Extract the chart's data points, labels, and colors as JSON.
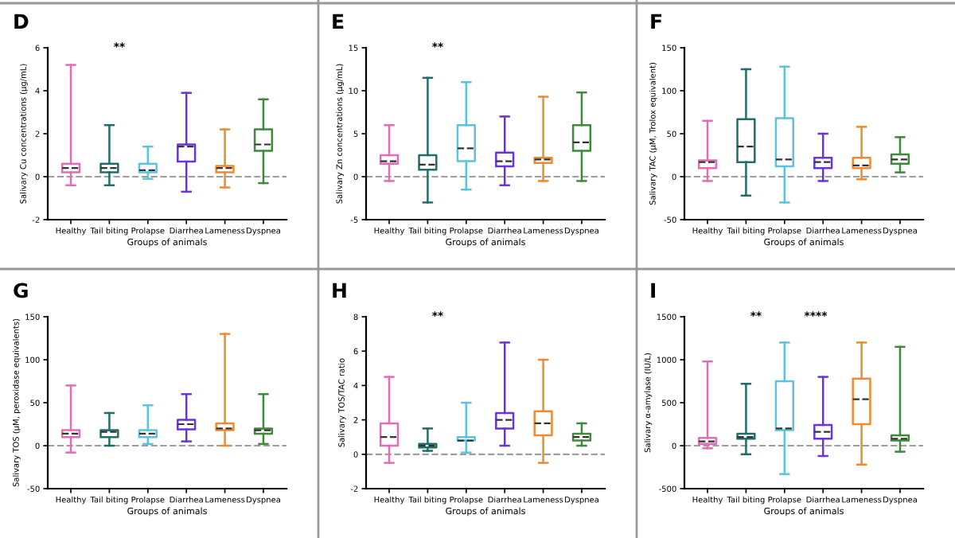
{
  "chart_data": [
    {
      "type": "box",
      "title": "D",
      "xlabel": "Groups of animals",
      "ylabel": "Salivary Cu concentrations (μg/mL)",
      "categories": [
        "Healthy",
        "Tail biting",
        "Prolapse",
        "Diarrhea",
        "Lameness",
        "Dyspnea"
      ],
      "colors": [
        "#e36cb8",
        "#1f6e6a",
        "#5cc3dc",
        "#6a35d4",
        "#f08a30",
        "#3f8a3a"
      ],
      "ylim": [
        -2,
        6
      ],
      "yticks": [
        -2,
        0,
        2,
        4,
        6
      ],
      "boxes": [
        {
          "low": -0.4,
          "q1": 0.2,
          "median": 0.4,
          "q3": 0.6,
          "high": 5.2
        },
        {
          "low": -0.4,
          "q1": 0.2,
          "median": 0.4,
          "q3": 0.6,
          "high": 2.4
        },
        {
          "low": -0.1,
          "q1": 0.2,
          "median": 0.3,
          "q3": 0.6,
          "high": 1.4
        },
        {
          "low": -0.7,
          "q1": 0.7,
          "median": 1.4,
          "q3": 1.5,
          "high": 3.9
        },
        {
          "low": -0.5,
          "q1": 0.2,
          "median": 0.4,
          "q3": 0.5,
          "high": 2.2
        },
        {
          "low": -0.3,
          "q1": 1.2,
          "median": 1.5,
          "q3": 2.2,
          "high": 3.6
        }
      ],
      "ref_lines": [
        {
          "axis": "y",
          "value": 0,
          "color": "#9e9e9e",
          "line_style": "dashed"
        }
      ],
      "annotations": [
        "**"
      ],
      "grid": false
    },
    {
      "type": "box",
      "title": "E",
      "xlabel": "Groups of animals",
      "ylabel": "Salivary Zn concentrations (μg/mL)",
      "categories": [
        "Healthy",
        "Tail biting",
        "Prolapse",
        "Diarrhea",
        "Lameness",
        "Dyspnea"
      ],
      "colors": [
        "#e36cb8",
        "#1f6e6a",
        "#5cc3dc",
        "#6a35d4",
        "#f08a30",
        "#3f8a3a"
      ],
      "ylim": [
        -5,
        15
      ],
      "yticks": [
        -5,
        0,
        5,
        10,
        15
      ],
      "boxes": [
        {
          "low": -0.5,
          "q1": 1.5,
          "median": 1.8,
          "q3": 2.5,
          "high": 6.0
        },
        {
          "low": -3.0,
          "q1": 0.8,
          "median": 1.4,
          "q3": 2.5,
          "high": 11.5
        },
        {
          "low": -1.5,
          "q1": 1.8,
          "median": 3.3,
          "q3": 6.0,
          "high": 11.0
        },
        {
          "low": -1.0,
          "q1": 1.2,
          "median": 1.8,
          "q3": 2.8,
          "high": 7.0
        },
        {
          "low": -0.5,
          "q1": 1.6,
          "median": 2.0,
          "q3": 2.2,
          "high": 9.3
        },
        {
          "low": -0.5,
          "q1": 3.0,
          "median": 4.0,
          "q3": 6.0,
          "high": 9.8
        }
      ],
      "ref_lines": [
        {
          "axis": "y",
          "value": 0,
          "color": "#9e9e9e",
          "line_style": "dashed"
        }
      ],
      "annotations": [
        "**"
      ],
      "grid": false
    },
    {
      "type": "box",
      "title": "F",
      "xlabel": "Groups of animals",
      "ylabel": "Salivary TAC (μM, Trolox equivalent)",
      "categories": [
        "Healthy",
        "Tail biting",
        "Prolapse",
        "Diarrhea",
        "Lameness",
        "Dyspnea"
      ],
      "colors": [
        "#e36cb8",
        "#1f6e6a",
        "#5cc3dc",
        "#6a35d4",
        "#f08a30",
        "#3f8a3a"
      ],
      "ylim": [
        -50,
        150
      ],
      "yticks": [
        -50,
        0,
        50,
        100,
        150
      ],
      "boxes": [
        {
          "low": -5,
          "q1": 10,
          "median": 17,
          "q3": 19,
          "high": 65
        },
        {
          "low": -22,
          "q1": 17,
          "median": 35,
          "q3": 67,
          "high": 125
        },
        {
          "low": -30,
          "q1": 12,
          "median": 20,
          "q3": 68,
          "high": 128
        },
        {
          "low": -5,
          "q1": 10,
          "median": 17,
          "q3": 22,
          "high": 50
        },
        {
          "low": -3,
          "q1": 10,
          "median": 13,
          "q3": 22,
          "high": 58
        },
        {
          "low": 5,
          "q1": 15,
          "median": 20,
          "q3": 26,
          "high": 46
        }
      ],
      "ref_lines": [
        {
          "axis": "y",
          "value": 0,
          "color": "#9e9e9e",
          "line_style": "dashed"
        }
      ],
      "grid": false
    },
    {
      "type": "box",
      "title": "G",
      "xlabel": "Groups of animals",
      "ylabel": "Salivary TOS (μM, peroxidase equivalents)",
      "categories": [
        "Healthy",
        "Tail biting",
        "Prolapse",
        "Diarrhea",
        "Lameness",
        "Dyspnea"
      ],
      "colors": [
        "#e36cb8",
        "#1f6e6a",
        "#5cc3dc",
        "#6a35d4",
        "#f08a30",
        "#3f8a3a"
      ],
      "ylim": [
        -50,
        150
      ],
      "yticks": [
        -50,
        0,
        50,
        100,
        150
      ],
      "boxes": [
        {
          "low": -8,
          "q1": 10,
          "median": 14,
          "q3": 18,
          "high": 70
        },
        {
          "low": 0,
          "q1": 10,
          "median": 16,
          "q3": 18,
          "high": 38
        },
        {
          "low": 2,
          "q1": 10,
          "median": 14,
          "q3": 18,
          "high": 47
        },
        {
          "low": 5,
          "q1": 19,
          "median": 25,
          "q3": 30,
          "high": 60
        },
        {
          "low": 0,
          "q1": 18,
          "median": 20,
          "q3": 26,
          "high": 130
        },
        {
          "low": 2,
          "q1": 14,
          "median": 18,
          "q3": 20,
          "high": 60
        }
      ],
      "ref_lines": [
        {
          "axis": "y",
          "value": 0,
          "color": "#9e9e9e",
          "line_style": "dashed"
        }
      ],
      "grid": false
    },
    {
      "type": "box",
      "title": "H",
      "xlabel": "Groups of animals",
      "ylabel": "Salivary TOS/TAC ratio",
      "categories": [
        "Healthy",
        "Tail biting",
        "Prolapse",
        "Diarrhea",
        "Lameness",
        "Dyspnea"
      ],
      "colors": [
        "#e36cb8",
        "#1f6e6a",
        "#5cc3dc",
        "#6a35d4",
        "#f08a30",
        "#3f8a3a"
      ],
      "ylim": [
        -2,
        8
      ],
      "yticks": [
        -2,
        0,
        2,
        4,
        6,
        8
      ],
      "boxes": [
        {
          "low": -0.5,
          "q1": 0.5,
          "median": 1.0,
          "q3": 1.8,
          "high": 4.5
        },
        {
          "low": 0.2,
          "q1": 0.4,
          "median": 0.5,
          "q3": 0.6,
          "high": 1.5
        },
        {
          "low": 0.1,
          "q1": 0.8,
          "median": 0.8,
          "q3": 1.0,
          "high": 3.0
        },
        {
          "low": 0.5,
          "q1": 1.5,
          "median": 2.0,
          "q3": 2.4,
          "high": 6.5
        },
        {
          "low": -0.5,
          "q1": 1.1,
          "median": 1.8,
          "q3": 2.5,
          "high": 5.5
        },
        {
          "low": 0.5,
          "q1": 0.8,
          "median": 1.0,
          "q3": 1.2,
          "high": 1.8
        }
      ],
      "ref_lines": [
        {
          "axis": "y",
          "value": 0,
          "color": "#9e9e9e",
          "line_style": "dashed"
        }
      ],
      "annotations": [
        "**"
      ],
      "grid": false
    },
    {
      "type": "box",
      "title": "I",
      "xlabel": "Groups of animals",
      "ylabel": "Salivary α-amylase (IU/L)",
      "categories": [
        "Healthy",
        "Tail biting",
        "Prolapse",
        "Diarrhea",
        "Lameness",
        "Dyspnea"
      ],
      "colors": [
        "#e36cb8",
        "#1f6e6a",
        "#5cc3dc",
        "#6a35d4",
        "#f08a30",
        "#3f8a3a"
      ],
      "ylim": [
        -500,
        1500
      ],
      "yticks": [
        -500,
        0,
        500,
        1000,
        1500
      ],
      "boxes": [
        {
          "low": -30,
          "q1": 20,
          "median": 50,
          "q3": 90,
          "high": 980
        },
        {
          "low": -100,
          "q1": 80,
          "median": 100,
          "q3": 140,
          "high": 720
        },
        {
          "low": -330,
          "q1": 180,
          "median": 200,
          "q3": 750,
          "high": 1200
        },
        {
          "low": -120,
          "q1": 80,
          "median": 160,
          "q3": 240,
          "high": 800
        },
        {
          "low": -220,
          "q1": 250,
          "median": 540,
          "q3": 780,
          "high": 1200
        },
        {
          "low": -70,
          "q1": 60,
          "median": 80,
          "q3": 120,
          "high": 1150
        }
      ],
      "ref_lines": [
        {
          "axis": "y",
          "value": 0,
          "color": "#9e9e9e",
          "line_style": "dashed"
        }
      ],
      "annotations": [
        "**",
        "****"
      ],
      "grid": false
    }
  ]
}
